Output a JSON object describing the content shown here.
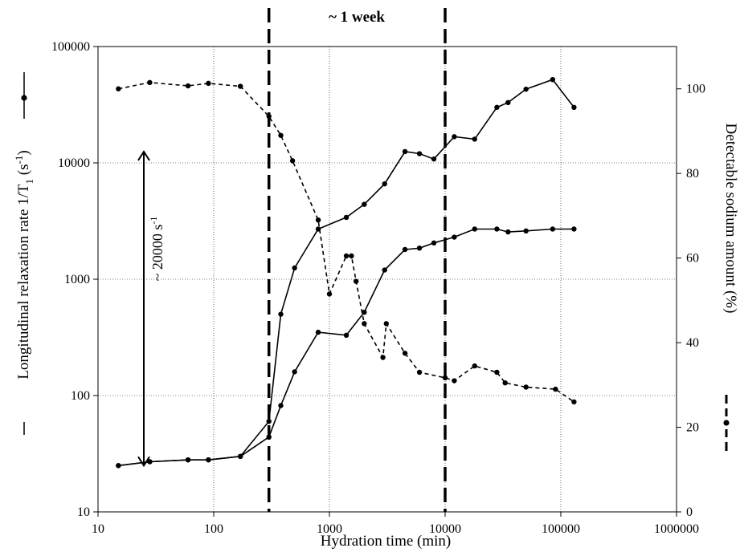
{
  "chart_data": {
    "type": "line",
    "xlabel": "Hydration time (min)",
    "ylabel_left_parts": [
      "Longitudinal relaxation rate 1/T",
      "1",
      " (s",
      "-1",
      ")"
    ],
    "ylabel_right": "Detectable sodium amount (%)",
    "x_scale": "log",
    "y_left_scale": "log",
    "xlim": [
      10,
      1000000
    ],
    "ylim_left": [
      10,
      100000
    ],
    "ylim_right": [
      0,
      110
    ],
    "x_ticks": [
      10,
      100,
      1000,
      10000,
      100000,
      1000000
    ],
    "x_tick_labels": [
      "10",
      "100",
      "1000",
      "10000",
      "100000",
      "1000000"
    ],
    "y_left_ticks": [
      10,
      100,
      1000,
      10000,
      100000
    ],
    "y_left_tick_labels": [
      "10",
      "100",
      "1000",
      "10000",
      "100000"
    ],
    "y_right_ticks": [
      0,
      20,
      40,
      60,
      80,
      100
    ],
    "y_right_tick_labels": [
      "0",
      "20",
      "40",
      "60",
      "80",
      "100"
    ],
    "grid": true,
    "series": [
      {
        "axis": "left",
        "style": "solid",
        "x": [
          15,
          28,
          60,
          90,
          170,
          300,
          380,
          500,
          800,
          1400,
          2000,
          3000,
          4500,
          6000,
          8000,
          12000,
          18000,
          28000,
          35000,
          50000,
          85000,
          130000
        ],
        "y": [
          25,
          27,
          28,
          28,
          30,
          60,
          500,
          1250,
          2700,
          3400,
          4400,
          6600,
          12500,
          12000,
          10800,
          16800,
          16000,
          30000,
          33000,
          43000,
          52000,
          30000
        ]
      },
      {
        "axis": "left",
        "style": "solid",
        "x": [
          15,
          28,
          60,
          90,
          170,
          300,
          380,
          500,
          800,
          1400,
          2000,
          3000,
          4500,
          6000,
          8000,
          12000,
          18000,
          28000,
          35000,
          50000,
          85000,
          130000
        ],
        "y": [
          25,
          27,
          28,
          28,
          30,
          44,
          82,
          160,
          350,
          330,
          520,
          1200,
          1800,
          1850,
          2050,
          2300,
          2700,
          2700,
          2550,
          2600,
          2700,
          2700
        ]
      },
      {
        "axis": "right",
        "style": "dashed",
        "x": [
          15,
          28,
          60,
          90,
          170,
          300,
          380,
          480,
          800,
          1000,
          1400,
          1550,
          1700,
          2000,
          2900,
          3100,
          4500,
          6000,
          10000,
          12000,
          18000,
          28000,
          33000,
          50000,
          90000,
          130000
        ],
        "y": [
          100,
          101.5,
          100.7,
          101.3,
          100.6,
          93.5,
          89,
          83,
          69,
          51.5,
          60.5,
          60.5,
          54.5,
          44.5,
          36.5,
          44.5,
          37.5,
          33,
          31.7,
          31,
          34.5,
          33,
          30.5,
          29.5,
          29,
          26
        ]
      }
    ],
    "annotations": {
      "week_label": "~ 1 week",
      "week_lines_x": [
        300,
        10000
      ],
      "arrow_label": "~ 20000 s",
      "arrow_label_sup": "-1",
      "arrow_y_range": [
        25,
        12500
      ]
    }
  }
}
